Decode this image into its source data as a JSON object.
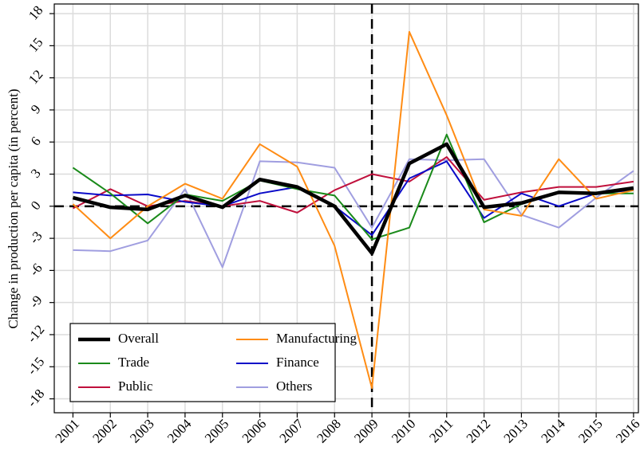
{
  "chart_data": {
    "type": "line",
    "y_label": "Change in production per capita (in percent)",
    "x": [
      2001,
      2002,
      2003,
      2004,
      2005,
      2006,
      2007,
      2008,
      2009,
      2010,
      2011,
      2012,
      2013,
      2014,
      2015,
      2016
    ],
    "series": [
      {
        "name": "Overall",
        "color": "#000000",
        "values": [
          0.8,
          -0.1,
          -0.3,
          1.0,
          -0.1,
          2.5,
          1.8,
          0.0,
          -4.4,
          4.0,
          5.8,
          -0.1,
          0.3,
          1.3,
          1.2,
          1.7
        ]
      },
      {
        "name": "Manufacturing",
        "color": "#ff8c14",
        "values": [
          0.2,
          -3.0,
          0.0,
          2.1,
          0.7,
          5.8,
          3.7,
          -3.7,
          -17.0,
          16.3,
          8.5,
          -0.3,
          -0.9,
          4.4,
          0.7,
          1.5
        ]
      },
      {
        "name": "Trade",
        "color": "#1a8a1a",
        "values": [
          3.6,
          1.2,
          -1.6,
          1.1,
          0.5,
          2.4,
          1.6,
          1.0,
          -3.1,
          -2.0,
          6.7,
          -1.5,
          0.2,
          1.3,
          1.2,
          1.2
        ]
      },
      {
        "name": "Finance",
        "color": "#0a0ac8",
        "values": [
          1.3,
          1.0,
          1.1,
          0.4,
          0.0,
          1.2,
          1.8,
          0.0,
          -2.7,
          2.6,
          4.2,
          -1.1,
          1.2,
          0.0,
          1.2,
          1.5
        ]
      },
      {
        "name": "Public",
        "color": "#c0103c",
        "values": [
          -0.2,
          1.6,
          0.0,
          0.5,
          0.0,
          0.5,
          -0.6,
          1.5,
          3.0,
          2.3,
          4.6,
          0.6,
          1.3,
          1.8,
          1.8,
          2.3
        ]
      },
      {
        "name": "Others",
        "color": "#a09ee0",
        "values": [
          -4.1,
          -4.2,
          -3.2,
          1.6,
          -5.7,
          4.2,
          4.1,
          3.6,
          -2.0,
          4.4,
          4.3,
          4.4,
          -0.8,
          -2.0,
          0.8,
          3.3
        ]
      }
    ],
    "xlim": [
      2000.5,
      2016.13
    ],
    "xticks": [
      2001,
      2002,
      2003,
      2004,
      2005,
      2006,
      2007,
      2008,
      2009,
      2010,
      2011,
      2012,
      2013,
      2014,
      2015,
      2016
    ],
    "ylim": [
      -19.3,
      18.9
    ],
    "yticks": [
      -18,
      -15,
      -12,
      -9,
      -6,
      -3,
      0,
      3,
      6,
      9,
      12,
      15,
      18
    ],
    "reference_lines": {
      "x": 2009,
      "y": 0
    },
    "grid": true,
    "legend": "lower left"
  }
}
